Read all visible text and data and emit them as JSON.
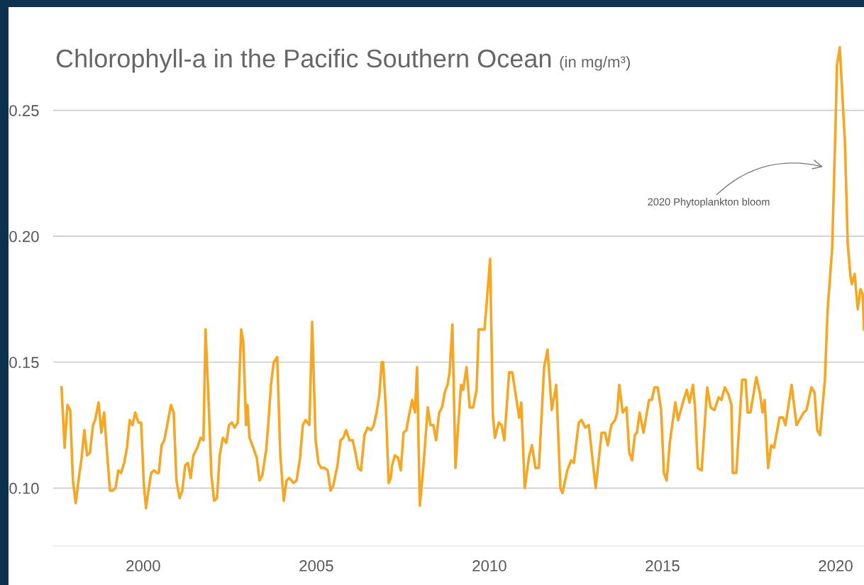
{
  "chart_data": {
    "type": "line",
    "title": "Chlorophyll-a in the Pacific Southern Ocean",
    "subtitle": "(in mg/m³)",
    "annotations": [
      "2020 Phytoplankton bloom"
    ],
    "xlim": [
      1997.4,
      2020.82
    ],
    "xticks": [
      2000,
      2005,
      2010,
      2015,
      2020
    ],
    "ylim": [
      0.077,
      0.291
    ],
    "yticks": [
      {
        "value": 0.1,
        "label": "0.10"
      },
      {
        "value": 0.15,
        "label": "0.15"
      },
      {
        "value": 0.2,
        "label": "0.20"
      },
      {
        "value": 0.25,
        "label": "0.25"
      }
    ],
    "grid": "y",
    "legend": false,
    "marker": "none",
    "line_style": "solid",
    "series": [
      {
        "color": "#f5a623",
        "x": [
          1997.64,
          1997.73,
          1997.81,
          1997.89,
          1997.97,
          1998.05,
          1998.14,
          1998.22,
          1998.3,
          1998.38,
          1998.46,
          1998.55,
          1998.61,
          1998.71,
          1998.79,
          1998.87,
          1998.95,
          1999.04,
          1999.12,
          1999.2,
          1999.28,
          1999.36,
          1999.45,
          1999.53,
          1999.61,
          1999.69,
          1999.77,
          1999.86,
          1999.94,
          2000.02,
          2000.08,
          2000.14,
          2000.23,
          2000.31,
          2000.39,
          2000.45,
          2000.53,
          2000.61,
          2000.72,
          2000.8,
          2000.88,
          2000.96,
          2001.05,
          2001.13,
          2001.21,
          2001.29,
          2001.37,
          2001.45,
          2001.56,
          2001.66,
          2001.74,
          2001.8,
          2001.89,
          2001.97,
          2002.05,
          2002.13,
          2002.21,
          2002.3,
          2002.4,
          2002.48,
          2002.56,
          2002.64,
          2002.73,
          2002.83,
          2002.89,
          2002.97,
          2003.01,
          2003.07,
          2003.18,
          2003.28,
          2003.36,
          2003.44,
          2003.55,
          2003.61,
          2003.69,
          2003.77,
          2003.87,
          2003.96,
          2004.06,
          2004.14,
          2004.22,
          2004.34,
          2004.43,
          2004.53,
          2004.61,
          2004.69,
          2004.8,
          2004.88,
          2004.98,
          2005.06,
          2005.14,
          2005.23,
          2005.33,
          2005.41,
          2005.49,
          2005.61,
          2005.7,
          2005.78,
          2005.86,
          2005.96,
          2006.05,
          2006.13,
          2006.21,
          2006.29,
          2006.39,
          2006.48,
          2006.58,
          2006.66,
          2006.74,
          2006.82,
          2006.89,
          2006.93,
          2007.01,
          2007.09,
          2007.15,
          2007.19,
          2007.27,
          2007.36,
          2007.44,
          2007.52,
          2007.6,
          2007.68,
          2007.77,
          2007.85,
          2007.91,
          2007.99,
          2008.09,
          2008.22,
          2008.3,
          2008.38,
          2008.46,
          2008.55,
          2008.63,
          2008.71,
          2008.79,
          2008.85,
          2008.93,
          2009.02,
          2009.08,
          2009.18,
          2009.24,
          2009.34,
          2009.43,
          2009.53,
          2009.63,
          2009.69,
          2009.86,
          2010.02,
          2010.1,
          2010.16,
          2010.27,
          2010.35,
          2010.43,
          2010.57,
          2010.66,
          2010.76,
          2010.86,
          2010.92,
          2011.02,
          2011.15,
          2011.23,
          2011.33,
          2011.43,
          2011.58,
          2011.68,
          2011.8,
          2011.93,
          2012.05,
          2012.11,
          2012.25,
          2012.36,
          2012.44,
          2012.58,
          2012.66,
          2012.77,
          2012.87,
          2013.07,
          2013.24,
          2013.34,
          2013.42,
          2013.52,
          2013.63,
          2013.69,
          2013.75,
          2013.85,
          2013.96,
          2014.04,
          2014.12,
          2014.2,
          2014.26,
          2014.34,
          2014.45,
          2014.61,
          2014.69,
          2014.77,
          2014.86,
          2014.96,
          2015.04,
          2015.12,
          2015.21,
          2015.37,
          2015.45,
          2015.59,
          2015.7,
          2015.78,
          2015.88,
          2015.94,
          2016.02,
          2016.13,
          2016.29,
          2016.39,
          2016.5,
          2016.62,
          2016.7,
          2016.8,
          2016.91,
          2016.99,
          2017.03,
          2017.13,
          2017.3,
          2017.4,
          2017.46,
          2017.54,
          2017.71,
          2017.81,
          2017.89,
          2017.95,
          2018.05,
          2018.14,
          2018.22,
          2018.38,
          2018.48,
          2018.55,
          2018.73,
          2018.87,
          2019.08,
          2019.16,
          2019.3,
          2019.39,
          2019.47,
          2019.55,
          2019.69,
          2019.77,
          2019.9,
          2020.0,
          2020.04,
          2020.12,
          2020.27,
          2020.35,
          2020.43,
          2020.47,
          2020.55,
          2020.64,
          2020.72,
          2020.78,
          2020.82
        ],
        "values": [
          0.14,
          0.116,
          0.133,
          0.131,
          0.103,
          0.094,
          0.104,
          0.112,
          0.123,
          0.113,
          0.114,
          0.125,
          0.127,
          0.134,
          0.122,
          0.13,
          0.115,
          0.099,
          0.099,
          0.1,
          0.107,
          0.106,
          0.11,
          0.116,
          0.127,
          0.125,
          0.13,
          0.126,
          0.126,
          0.101,
          0.092,
          0.098,
          0.106,
          0.107,
          0.106,
          0.106,
          0.117,
          0.119,
          0.127,
          0.133,
          0.13,
          0.103,
          0.096,
          0.099,
          0.109,
          0.11,
          0.104,
          0.113,
          0.116,
          0.12,
          0.119,
          0.163,
          0.134,
          0.105,
          0.095,
          0.096,
          0.113,
          0.12,
          0.118,
          0.125,
          0.126,
          0.124,
          0.126,
          0.163,
          0.158,
          0.125,
          0.133,
          0.12,
          0.116,
          0.112,
          0.103,
          0.105,
          0.115,
          0.125,
          0.141,
          0.15,
          0.152,
          0.113,
          0.095,
          0.103,
          0.104,
          0.102,
          0.103,
          0.112,
          0.125,
          0.127,
          0.125,
          0.166,
          0.119,
          0.11,
          0.108,
          0.108,
          0.107,
          0.099,
          0.101,
          0.109,
          0.119,
          0.12,
          0.123,
          0.119,
          0.119,
          0.114,
          0.108,
          0.107,
          0.121,
          0.124,
          0.123,
          0.125,
          0.13,
          0.137,
          0.15,
          0.15,
          0.131,
          0.102,
          0.104,
          0.109,
          0.113,
          0.112,
          0.107,
          0.122,
          0.123,
          0.129,
          0.135,
          0.13,
          0.148,
          0.093,
          0.108,
          0.132,
          0.125,
          0.125,
          0.119,
          0.13,
          0.132,
          0.138,
          0.141,
          0.146,
          0.165,
          0.108,
          0.121,
          0.141,
          0.139,
          0.148,
          0.132,
          0.132,
          0.139,
          0.163,
          0.163,
          0.191,
          0.129,
          0.12,
          0.126,
          0.125,
          0.119,
          0.146,
          0.146,
          0.137,
          0.128,
          0.134,
          0.1,
          0.113,
          0.117,
          0.108,
          0.108,
          0.148,
          0.155,
          0.131,
          0.141,
          0.1,
          0.098,
          0.107,
          0.111,
          0.11,
          0.126,
          0.127,
          0.124,
          0.125,
          0.1,
          0.122,
          0.122,
          0.117,
          0.125,
          0.127,
          0.13,
          0.141,
          0.13,
          0.132,
          0.114,
          0.111,
          0.121,
          0.122,
          0.13,
          0.122,
          0.135,
          0.135,
          0.14,
          0.14,
          0.131,
          0.106,
          0.103,
          0.118,
          0.134,
          0.127,
          0.134,
          0.139,
          0.134,
          0.141,
          0.132,
          0.108,
          0.107,
          0.14,
          0.132,
          0.131,
          0.136,
          0.135,
          0.14,
          0.137,
          0.133,
          0.106,
          0.106,
          0.143,
          0.143,
          0.13,
          0.13,
          0.144,
          0.138,
          0.13,
          0.135,
          0.108,
          0.117,
          0.116,
          0.128,
          0.128,
          0.125,
          0.141,
          0.125,
          0.13,
          0.131,
          0.14,
          0.138,
          0.123,
          0.121,
          0.143,
          0.171,
          0.195,
          0.245,
          0.268,
          0.275,
          0.237,
          0.197,
          0.184,
          0.181,
          0.185,
          0.171,
          0.179,
          0.177,
          0.163
        ]
      }
    ]
  }
}
